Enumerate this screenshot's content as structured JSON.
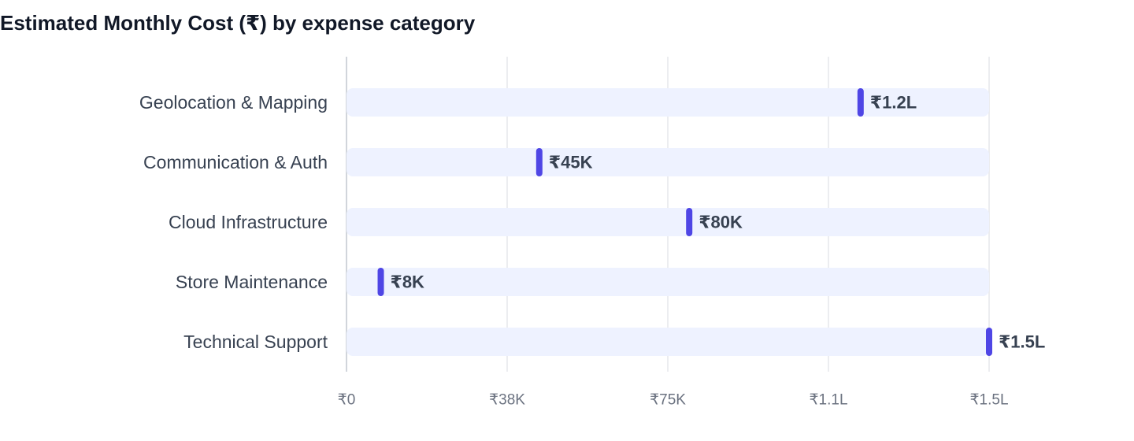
{
  "chart_data": {
    "type": "bar",
    "title": "Estimated Monthly Cost (₹) by expense category",
    "xlabel": "",
    "ylabel": "",
    "categories": [
      "Geolocation & Mapping",
      "Communication & Auth",
      "Cloud Infrastructure",
      "Store Maintenance",
      "Technical Support"
    ],
    "values": [
      120000,
      45000,
      80000,
      8000,
      150000
    ],
    "value_labels": [
      "₹1.2L",
      "₹45K",
      "₹80K",
      "₹8K",
      "₹1.5L"
    ],
    "xlim": [
      0,
      150000
    ],
    "ticks": [
      0,
      37500,
      75000,
      112500,
      150000
    ],
    "tick_labels": [
      "₹0",
      "₹38K",
      "₹75K",
      "₹1.1L",
      "₹1.5L"
    ],
    "orientation": "horizontal",
    "grid": true
  },
  "colors": {
    "marker": "#4f46e5",
    "track": "#eef2ff",
    "grid": "#e5e7eb"
  }
}
